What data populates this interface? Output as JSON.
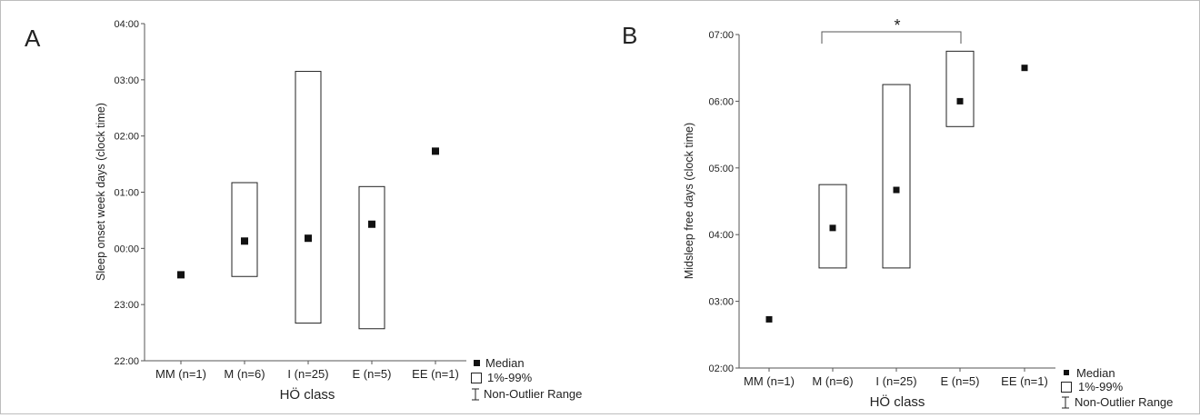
{
  "figure": {
    "panels": [
      {
        "letter": "A",
        "ylabel": "Sleep onset week days (clock time)",
        "xlabel": "HÖ class"
      },
      {
        "letter": "B",
        "ylabel": "Midsleep free days (clock time)",
        "xlabel": "HÖ class",
        "significance": "*"
      }
    ],
    "legend": {
      "median": "Median",
      "range": "1%-99%",
      "non_outlier": "Non-Outlier Range"
    }
  },
  "chart_data": [
    {
      "type": "box",
      "panel": "A",
      "title": "",
      "xlabel": "HÖ class",
      "ylabel": "Sleep onset week days (clock time)",
      "categories": [
        "MM (n=1)",
        "M (n=6)",
        "I (n=25)",
        "E (n=5)",
        "EE (n=1)"
      ],
      "yticks": [
        "22:00",
        "23:00",
        "00:00",
        "01:00",
        "02:00",
        "03:00",
        "04:00"
      ],
      "ylim_hours": [
        22,
        28
      ],
      "median_hours": [
        23.53,
        24.13,
        24.18,
        24.43,
        25.73
      ],
      "p1_hours": [
        null,
        23.5,
        22.67,
        22.57,
        null
      ],
      "p99_hours": [
        null,
        25.17,
        27.15,
        25.1,
        null
      ],
      "legend": [
        "Median",
        "1%-99%",
        "Non-Outlier Range"
      ]
    },
    {
      "type": "box",
      "panel": "B",
      "title": "",
      "xlabel": "HÖ class",
      "ylabel": "Midsleep free days (clock time)",
      "categories": [
        "MM (n=1)",
        "M (n=6)",
        "I (n=25)",
        "E (n=5)",
        "EE (n=1)"
      ],
      "yticks": [
        "02:00",
        "03:00",
        "04:00",
        "05:00",
        "06:00",
        "07:00"
      ],
      "ylim_hours": [
        2,
        7
      ],
      "median_hours": [
        2.73,
        4.1,
        4.67,
        6.0,
        6.5
      ],
      "p1_hours": [
        null,
        3.5,
        3.5,
        5.62,
        null
      ],
      "p99_hours": [
        null,
        4.75,
        6.25,
        6.75,
        null
      ],
      "significance": {
        "from": "M (n=6)",
        "to": "E (n=5)",
        "label": "*"
      },
      "legend": [
        "Median",
        "1%-99%",
        "Non-Outlier Range"
      ]
    }
  ]
}
